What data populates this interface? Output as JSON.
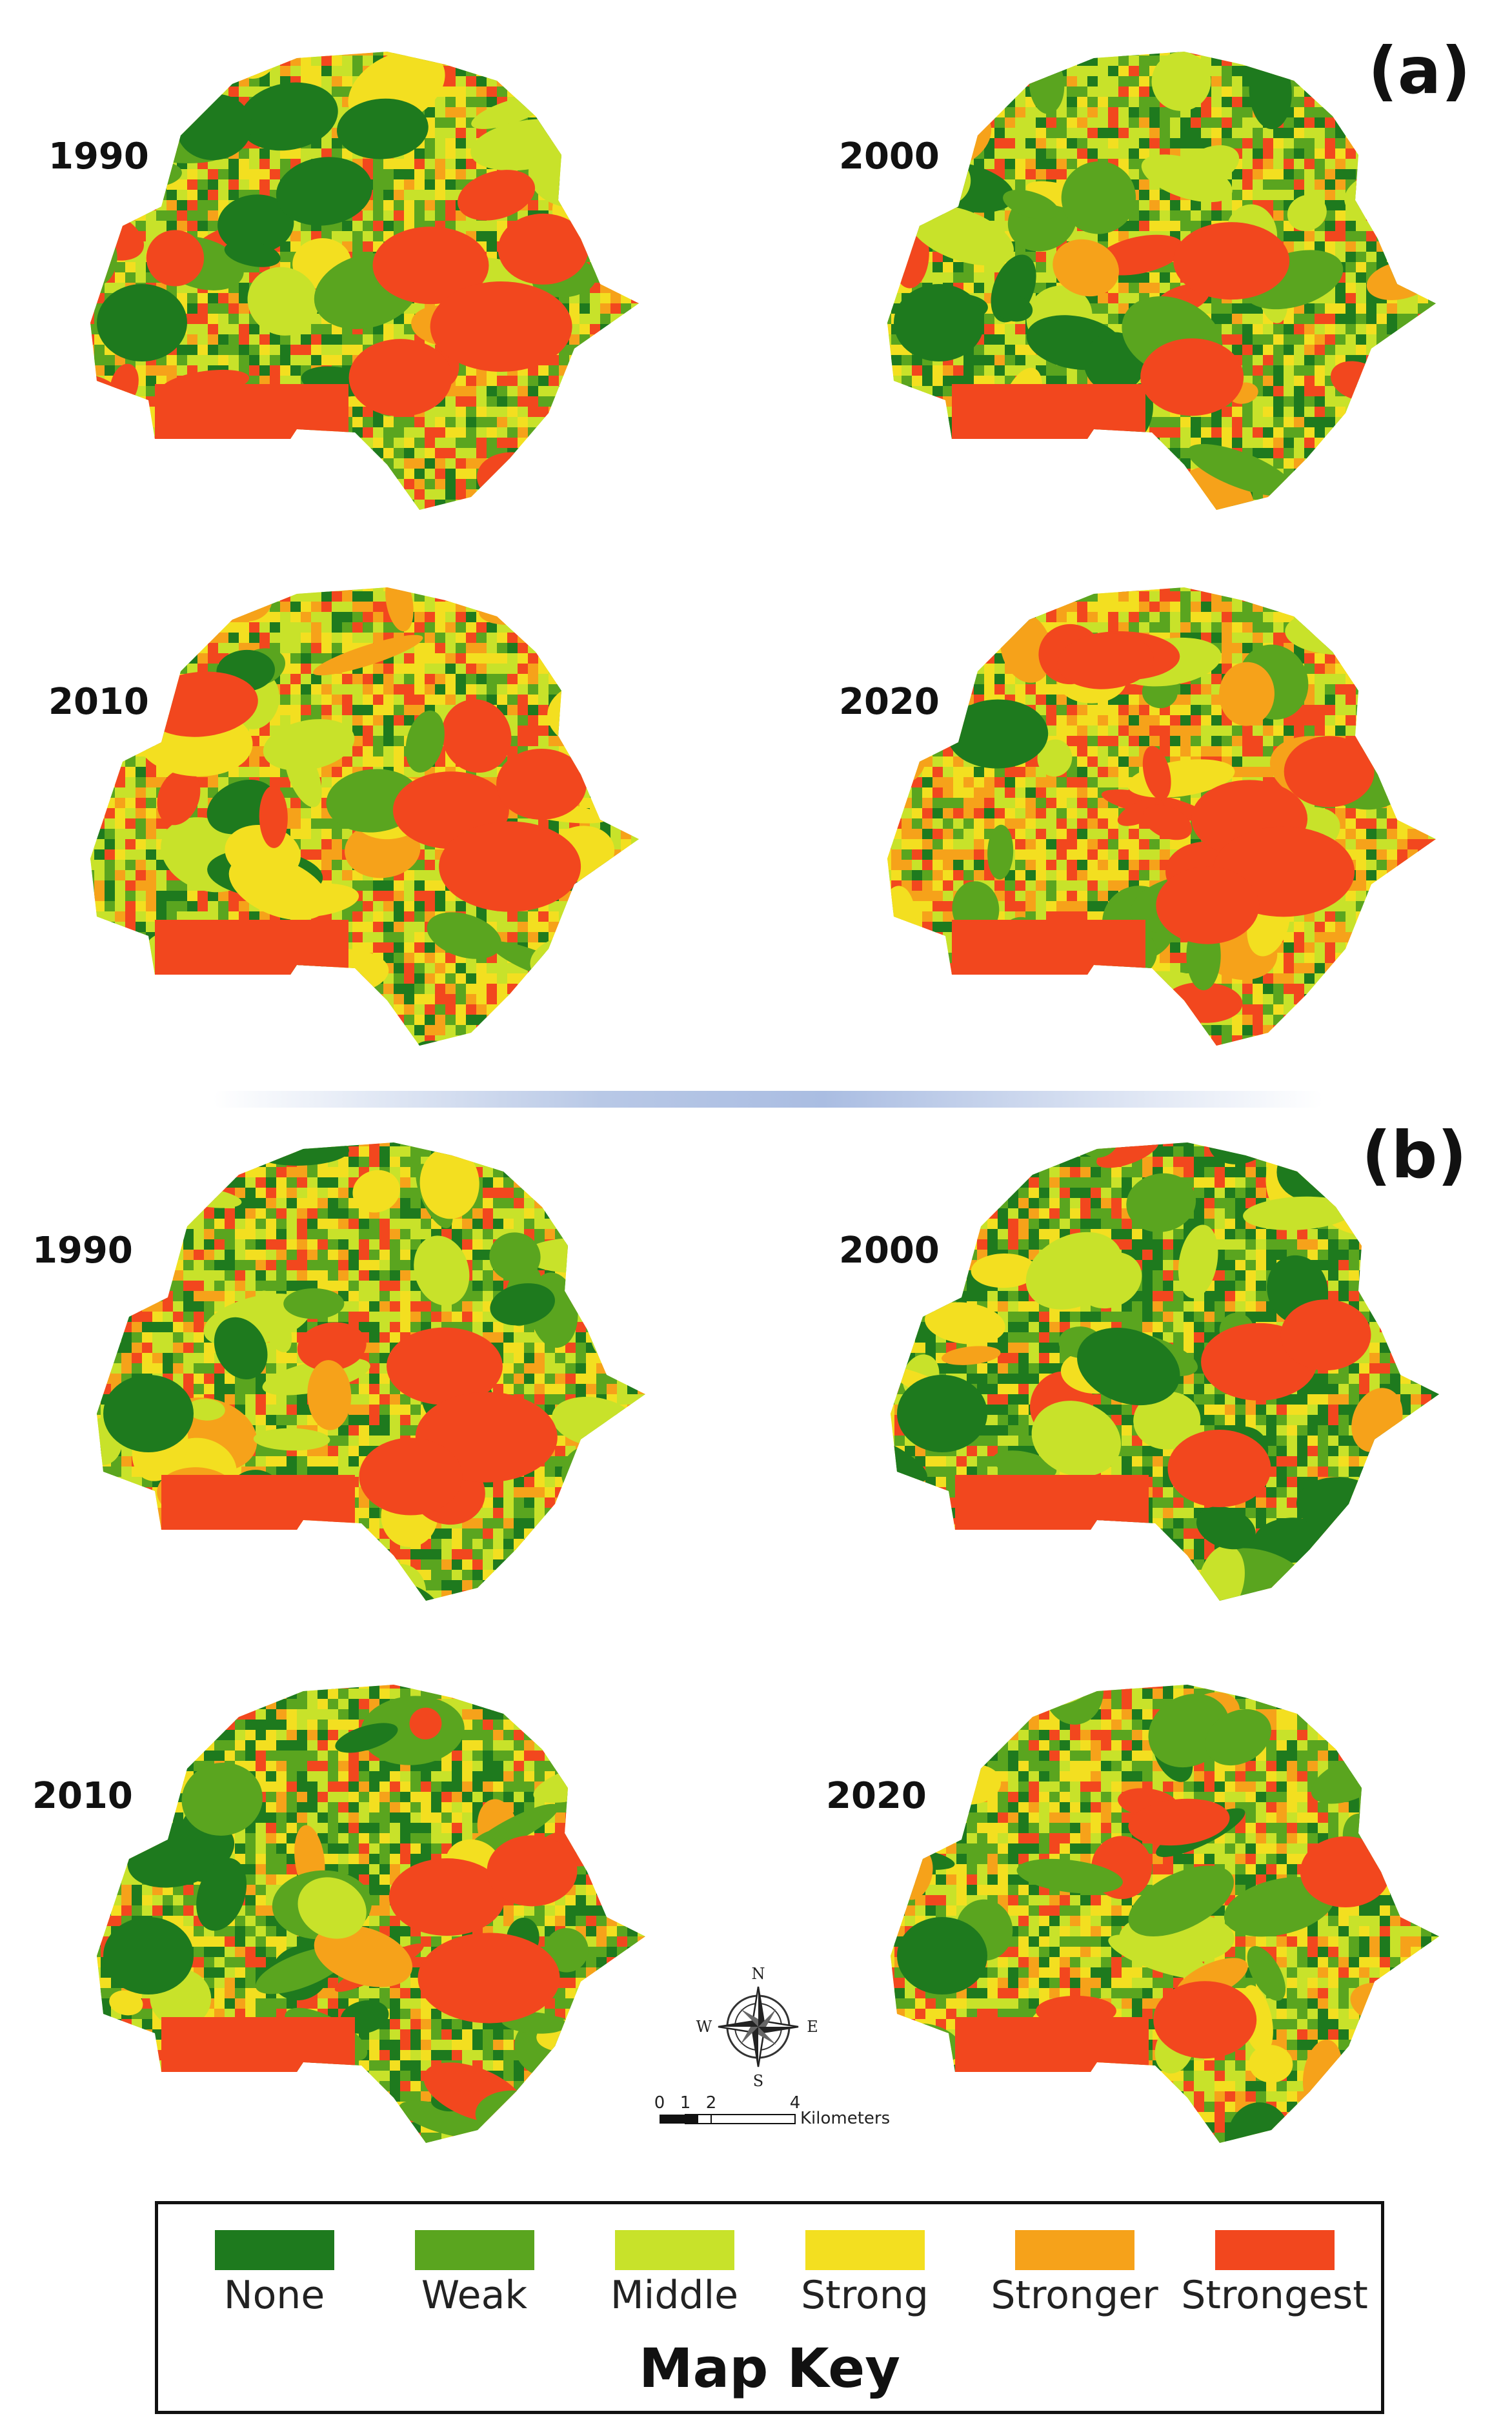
{
  "panels": [
    {
      "label": "(a)",
      "maps": [
        {
          "year": "1990",
          "class_weights": [
            0.12,
            0.22,
            0.24,
            0.16,
            0.12,
            0.14
          ]
        },
        {
          "year": "2000",
          "class_weights": [
            0.18,
            0.22,
            0.28,
            0.14,
            0.06,
            0.12
          ]
        },
        {
          "year": "2010",
          "class_weights": [
            0.1,
            0.14,
            0.24,
            0.2,
            0.14,
            0.18
          ]
        },
        {
          "year": "2020",
          "class_weights": [
            0.06,
            0.12,
            0.2,
            0.22,
            0.2,
            0.2
          ]
        }
      ]
    },
    {
      "label": "(b)",
      "maps": [
        {
          "year": "1990",
          "class_weights": [
            0.16,
            0.22,
            0.18,
            0.18,
            0.12,
            0.14
          ]
        },
        {
          "year": "2000",
          "class_weights": [
            0.3,
            0.24,
            0.16,
            0.12,
            0.06,
            0.12
          ]
        },
        {
          "year": "2010",
          "class_weights": [
            0.24,
            0.22,
            0.16,
            0.16,
            0.1,
            0.12
          ]
        },
        {
          "year": "2020",
          "class_weights": [
            0.14,
            0.2,
            0.2,
            0.2,
            0.12,
            0.14
          ]
        }
      ]
    }
  ],
  "compass": {
    "n": "N",
    "s": "S",
    "e": "E",
    "w": "W"
  },
  "scale_bar": {
    "ticks": [
      "0",
      "1",
      "2",
      "4"
    ],
    "unit": "Kilometers"
  },
  "legend": {
    "title": "Map Key",
    "items": [
      {
        "label": "None",
        "color": "#1e7a1e"
      },
      {
        "label": "Weak",
        "color": "#5aa51f"
      },
      {
        "label": "Middle",
        "color": "#c8e22a"
      },
      {
        "label": "Strong",
        "color": "#f3df20"
      },
      {
        "label": "Stronger",
        "color": "#f6a21a"
      },
      {
        "label": "Strongest",
        "color": "#f2471e"
      }
    ]
  }
}
